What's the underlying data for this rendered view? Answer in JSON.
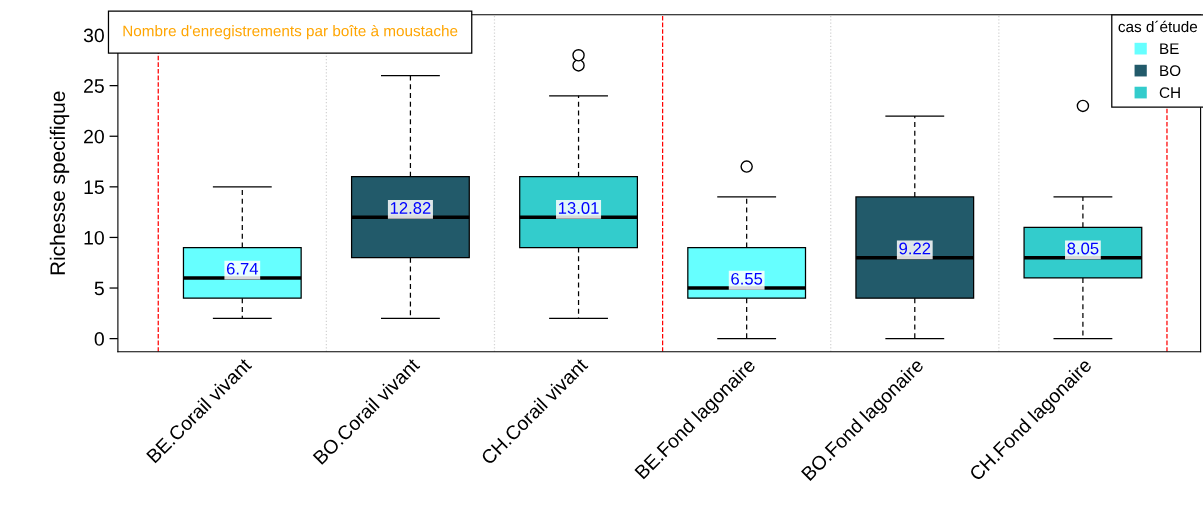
{
  "chart_data": {
    "type": "box",
    "categories": [
      "BE.Corail vivant",
      "BO.Corail vivant",
      "CH.Corail vivant",
      "BE.Fond lagonaire",
      "BO.Fond lagonaire",
      "CH.Fond lagonaire"
    ],
    "ylabel": "Richesse specifique",
    "legend_title": "cas d´étude",
    "legend": "top right",
    "ylim": [
      -1.3,
      32
    ],
    "yticks": [
      0,
      5,
      10,
      15,
      20,
      25,
      30
    ],
    "annotations": [
      "Nombre d'enregistrements par boîte à moustache"
    ],
    "series": [
      {
        "name": "BE",
        "color": "#66ffff",
        "boxes": [
          {
            "low": 2,
            "q1": 4,
            "median": 6,
            "q3": 9,
            "high": 15
          },
          null,
          null,
          {
            "low": 0,
            "q1": 4,
            "median": 5,
            "q3": 9,
            "high": 14,
            "outliers": [
              17
            ]
          },
          null,
          null
        ],
        "value_labels": [
          "6.74",
          null,
          null,
          "6.55",
          null,
          null
        ]
      },
      {
        "name": "BO",
        "color": "#225a6a",
        "boxes": [
          null,
          {
            "low": 2,
            "q1": 8,
            "median": 12,
            "q3": 16,
            "high": 26
          },
          null,
          null,
          {
            "low": 0,
            "q1": 4,
            "median": 8,
            "q3": 14,
            "high": 22
          },
          null
        ],
        "value_labels": [
          null,
          "12.82",
          null,
          null,
          "9.22",
          null
        ]
      },
      {
        "name": "CH",
        "color": "#33cccc",
        "boxes": [
          null,
          null,
          {
            "low": 2,
            "q1": 9,
            "median": 12,
            "q3": 16,
            "high": 24,
            "outliers": [
              27,
              28
            ]
          },
          null,
          null,
          {
            "low": 0,
            "q1": 6,
            "median": 8,
            "q3": 11,
            "high": 14,
            "outliers": [
              23
            ]
          }
        ],
        "value_labels": [
          null,
          null,
          "13.01",
          null,
          null,
          "8.05"
        ]
      }
    ]
  }
}
